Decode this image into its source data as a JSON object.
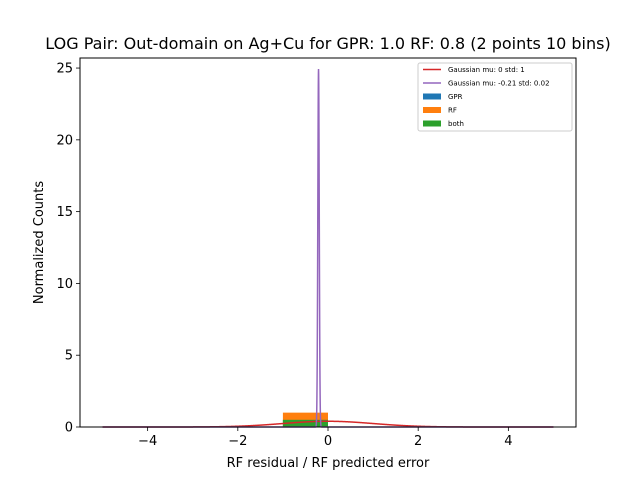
{
  "chart_data": {
    "type": "bar",
    "title": "LOG Pair: Out-domain on Ag+Cu for GPR: 1.0 RF: 0.8 (2 points 10 bins)",
    "xlabel": "RF residual / RF predicted error",
    "ylabel": "Normalized Counts",
    "xlim": [
      -5.5,
      5.5
    ],
    "ylim": [
      0,
      25.7
    ],
    "xticks": [
      -4,
      -2,
      0,
      2,
      4
    ],
    "xtick_labels": [
      "−4",
      "−2",
      "0",
      "2",
      "4"
    ],
    "yticks": [
      0,
      5,
      10,
      15,
      20,
      25
    ],
    "ytick_labels": [
      "0",
      "5",
      "10",
      "15",
      "20",
      "25"
    ],
    "grid": false,
    "legend_position": "top-right",
    "histograms": [
      {
        "name": "GPR",
        "color": "#1f77b4",
        "bins": [
          {
            "x0": -1.0,
            "x1": 0.0,
            "value": 0.5
          }
        ]
      },
      {
        "name": "RF",
        "color": "#ff7f0e",
        "bins": [
          {
            "x0": -1.0,
            "x1": 0.0,
            "value": 1.0
          }
        ]
      },
      {
        "name": "both",
        "color": "#2ca02c",
        "bins": [
          {
            "x0": -1.0,
            "x1": 0.0,
            "value": 0.5
          }
        ]
      }
    ],
    "curves": [
      {
        "name": "Gaussian mu: 0 std: 1",
        "color": "#d62728",
        "mu": 0,
        "std": 1,
        "x_range": [
          -5,
          5
        ]
      },
      {
        "name": "Gaussian mu: -0.21 std: 0.02",
        "color": "#9467bd",
        "mu": -0.21,
        "std": 0.016,
        "x_range": [
          -5,
          5
        ]
      }
    ],
    "legend": [
      {
        "label": "Gaussian mu: 0 std: 1",
        "kind": "line",
        "color": "#d62728"
      },
      {
        "label": "Gaussian mu: -0.21 std: 0.02",
        "kind": "line",
        "color": "#9467bd"
      },
      {
        "label": "GPR",
        "kind": "patch",
        "color": "#1f77b4"
      },
      {
        "label": "RF",
        "kind": "patch",
        "color": "#ff7f0e"
      },
      {
        "label": "both",
        "kind": "patch",
        "color": "#2ca02c"
      }
    ]
  }
}
